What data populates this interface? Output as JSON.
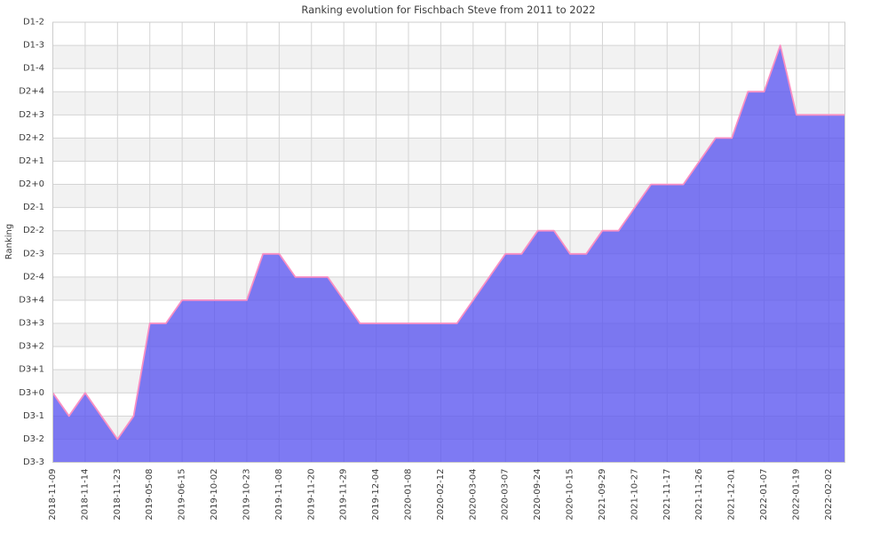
{
  "chart_data": {
    "type": "area",
    "title": "Ranking evolution for Fischbach Steve from 2011 to 2022",
    "xlabel": "",
    "ylabel": "Ranking",
    "legend_position": "none",
    "grid": true,
    "band_shading": "alternating-rows",
    "y_levels_top_to_bottom": [
      "D1-2",
      "D1-3",
      "D1-4",
      "D2+4",
      "D2+3",
      "D2+2",
      "D2+1",
      "D2+0",
      "D2-1",
      "D2-2",
      "D2-3",
      "D2-4",
      "D3+4",
      "D3+3",
      "D3+2",
      "D3+1",
      "D3+0",
      "D3-1",
      "D3-2",
      "D3-3"
    ],
    "x_tick_labels": [
      "2018-11-09",
      "2018-11-14",
      "2018-11-23",
      "2019-05-08",
      "2019-06-15",
      "2019-10-02",
      "2019-10-23",
      "2019-11-08",
      "2019-11-20",
      "2019-11-29",
      "2019-12-04",
      "2020-01-08",
      "2020-02-12",
      "2020-03-04",
      "2020-03-07",
      "2020-09-24",
      "2020-10-15",
      "2021-09-29",
      "2021-10-27",
      "2021-11-17",
      "2021-11-26",
      "2021-12-01",
      "2022-01-07",
      "2022-01-19",
      "2022-02-02"
    ],
    "points_per_tick": 2,
    "x_tick_rotation_deg": 90,
    "series": [
      {
        "name": "ranking",
        "values_rank": [
          "D3+0",
          "D3-1",
          "D3+0",
          "D3-1",
          "D3-2",
          "D3-1",
          "D3+3",
          "D3+3",
          "D3+4",
          "D3+4",
          "D3+4",
          "D3+4",
          "D3+4",
          "D2-3",
          "D2-3",
          "D2-4",
          "D2-4",
          "D2-4",
          "D3+4",
          "D3+3",
          "D3+3",
          "D3+3",
          "D3+3",
          "D3+3",
          "D3+3",
          "D3+3",
          "D3+4",
          "D2-4",
          "D2-3",
          "D2-3",
          "D2-2",
          "D2-2",
          "D2-3",
          "D2-3",
          "D2-2",
          "D2-2",
          "D2-1",
          "D2+0",
          "D2+0",
          "D2+0",
          "D2+1",
          "D2+2",
          "D2+2",
          "D2+4",
          "D2+4",
          "D1-3",
          "D2+3",
          "D2+3",
          "D2+3",
          "D2+3"
        ]
      }
    ],
    "labeled_points": [
      {
        "date": "2018-11-09",
        "rank": "D3+0"
      },
      {
        "date": "2018-11-14",
        "rank": "D3+0"
      },
      {
        "date": "2018-11-23",
        "rank": "D3-2"
      },
      {
        "date": "2019-05-08",
        "rank": "D3+3"
      },
      {
        "date": "2019-06-15",
        "rank": "D3+4"
      },
      {
        "date": "2019-10-02",
        "rank": "D3+4"
      },
      {
        "date": "2019-10-23",
        "rank": "D3+4"
      },
      {
        "date": "2019-11-08",
        "rank": "D2-3"
      },
      {
        "date": "2019-11-20",
        "rank": "D2-4"
      },
      {
        "date": "2019-11-29",
        "rank": "D3+4"
      },
      {
        "date": "2019-12-04",
        "rank": "D3+3"
      },
      {
        "date": "2020-01-08",
        "rank": "D3+3"
      },
      {
        "date": "2020-02-12",
        "rank": "D3+3"
      },
      {
        "date": "2020-03-04",
        "rank": "D3+4"
      },
      {
        "date": "2020-03-07",
        "rank": "D2-3"
      },
      {
        "date": "2020-09-24",
        "rank": "D2-2"
      },
      {
        "date": "2020-10-15",
        "rank": "D2-3"
      },
      {
        "date": "2021-09-29",
        "rank": "D2-2"
      },
      {
        "date": "2021-10-27",
        "rank": "D2-1"
      },
      {
        "date": "2021-11-17",
        "rank": "D2+0"
      },
      {
        "date": "2021-11-26",
        "rank": "D2+1"
      },
      {
        "date": "2021-12-01",
        "rank": "D2+2"
      },
      {
        "date": "2022-01-07",
        "rank": "D2+4"
      },
      {
        "date": "2022-01-19",
        "rank": "D2+3"
      },
      {
        "date": "2022-02-02",
        "rank": "D2+3"
      }
    ]
  },
  "colors": {
    "area_fill": "#5a55ef",
    "area_opacity": "0.78",
    "line": "#f98fc3",
    "band_gray": "#f2f2f2",
    "band_white": "#ffffff",
    "grid": "#d4d4d4",
    "plot_border": "#cccccc",
    "text": "#3c3c3c"
  }
}
